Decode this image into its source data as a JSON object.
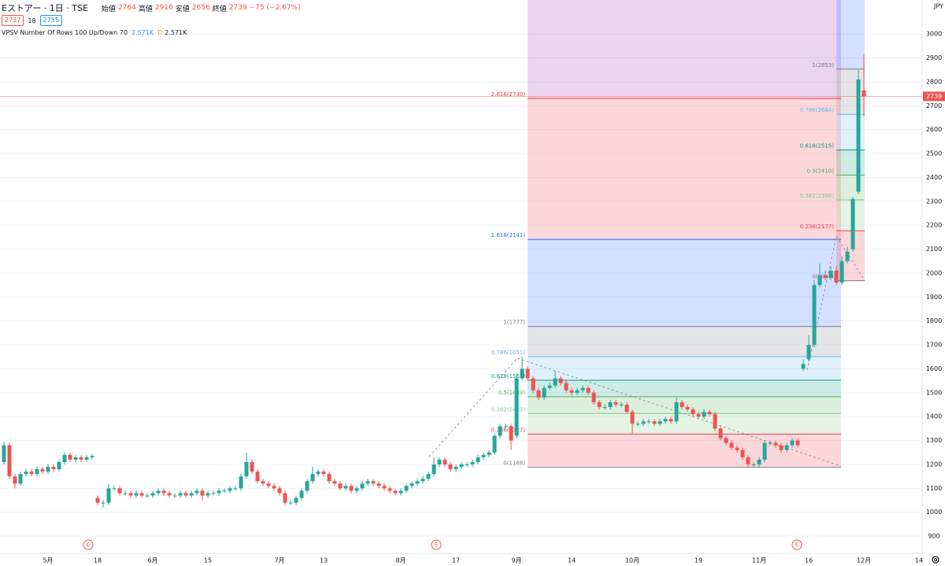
{
  "header": {
    "bid": "2737",
    "spread": "18",
    "ask": "2755",
    "indicator": "VPSV Number Of Rows 100 Up/Down 70",
    "indicator_up": "2.571K",
    "indicator_flag": "D",
    "indicator_down": "2.571K"
  },
  "chart_data": {
    "type": "candlestick",
    "title": "Eストアー · 1日 · TSE",
    "ohlc_legend": [
      {
        "label": "始値",
        "value": 2764
      },
      {
        "label": "高値",
        "value": 2916
      },
      {
        "label": "安値",
        "value": 2656
      },
      {
        "label": "終値",
        "value": 2739
      }
    ],
    "change": "−75 (−2.67%)",
    "y_unit": "JPY",
    "up_color": "#26a69a",
    "down_color": "#ef5350",
    "ylim": [
      828,
      3142
    ],
    "yticks": [
      900,
      1000,
      1100,
      1200,
      1300,
      1400,
      1500,
      1600,
      1700,
      1800,
      1900,
      2000,
      2100,
      2200,
      2300,
      2400,
      2500,
      2600,
      2700,
      2800,
      2900,
      3000
    ],
    "grid": true,
    "categories": [
      null,
      null,
      null,
      null,
      null,
      null,
      null,
      null,
      "5月",
      null,
      null,
      null,
      null,
      null,
      null,
      null,
      null,
      "18",
      null,
      null,
      null,
      null,
      null,
      null,
      null,
      null,
      null,
      "6月",
      null,
      null,
      null,
      null,
      null,
      null,
      null,
      null,
      null,
      "15",
      null,
      null,
      null,
      null,
      null,
      null,
      null,
      null,
      null,
      null,
      null,
      null,
      "7月",
      null,
      null,
      null,
      null,
      null,
      null,
      null,
      "13",
      null,
      null,
      null,
      null,
      null,
      null,
      null,
      null,
      null,
      null,
      null,
      null,
      null,
      "8月",
      null,
      null,
      null,
      null,
      null,
      null,
      null,
      null,
      null,
      "17",
      null,
      null,
      null,
      null,
      null,
      null,
      null,
      null,
      null,
      null,
      "9月",
      null,
      null,
      null,
      null,
      null,
      null,
      null,
      null,
      null,
      "14",
      null,
      null,
      null,
      null,
      null,
      null,
      null,
      null,
      null,
      null,
      "10月",
      null,
      null,
      null,
      null,
      null,
      null,
      null,
      null,
      null,
      null,
      null,
      "19",
      null,
      null,
      null,
      null,
      null,
      null,
      null,
      null,
      null,
      null,
      "11月",
      null,
      null,
      null,
      null,
      null,
      null,
      null,
      null,
      "16",
      null,
      null,
      null,
      null,
      null,
      null,
      null,
      null,
      null,
      "12月",
      null,
      null,
      null,
      null,
      null,
      null,
      null,
      null,
      null,
      "14"
    ],
    "open": [
      1210,
      1280,
      1150,
      1120,
      1160,
      1170,
      1160,
      1180,
      1170,
      1190,
      1180,
      1210,
      1240,
      1220,
      1230,
      1220,
      1230,
      1060,
      1040,
      1040,
      1100,
      1100,
      1080,
      1080,
      1070,
      1080,
      1070,
      1070,
      1080,
      1090,
      1080,
      1070,
      1070,
      1080,
      1070,
      1080,
      1090,
      1070,
      1080,
      1080,
      1090,
      1090,
      1100,
      1100,
      1150,
      1210,
      1170,
      1130,
      1120,
      1110,
      1100,
      1080,
      1040,
      1040,
      1060,
      1090,
      1130,
      1160,
      1170,
      1160,
      1130,
      1120,
      1100,
      1110,
      1090,
      1100,
      1120,
      1130,
      1120,
      1110,
      1100,
      1090,
      1080,
      1090,
      1110,
      1120,
      1130,
      1140,
      1160,
      1200,
      1220,
      1200,
      1180,
      1190,
      1200,
      1200,
      1210,
      1230,
      1240,
      1250,
      1320,
      1360,
      1360,
      1320,
      1560,
      1600,
      1560,
      1510,
      1480,
      1520,
      1530,
      1560,
      1540,
      1510,
      1500,
      1510,
      1520,
      1500,
      1460,
      1440,
      1440,
      1460,
      1450,
      1450,
      1420,
      1370,
      1370,
      1380,
      1380,
      1370,
      1380,
      1390,
      1380,
      1460,
      1440,
      1430,
      1410,
      1400,
      1420,
      1410,
      1350,
      1310,
      1290,
      1270,
      1260,
      1230,
      1200,
      1200,
      1220,
      1290,
      1290,
      1280,
      1260,
      1280,
      1300,
      1600,
      1640,
      1700,
      1950,
      1990,
      1980,
      2010,
      1960,
      2050,
      2100,
      2340,
      2764,
      null,
      null,
      null,
      null,
      null,
      null,
      null,
      null,
      null,
      null
    ],
    "high": [
      1295,
      1290,
      1160,
      1170,
      1180,
      1180,
      1190,
      1190,
      1200,
      1200,
      1220,
      1250,
      1250,
      1240,
      1240,
      1240,
      1245,
      1070,
      1050,
      1120,
      1110,
      1110,
      1090,
      1090,
      1090,
      1090,
      1080,
      1090,
      1100,
      1100,
      1090,
      1080,
      1090,
      1090,
      1090,
      1100,
      1100,
      1090,
      1090,
      1100,
      1100,
      1110,
      1110,
      1160,
      1250,
      1220,
      1180,
      1140,
      1130,
      1120,
      1110,
      1090,
      1050,
      1070,
      1100,
      1140,
      1190,
      1180,
      1180,
      1170,
      1140,
      1130,
      1120,
      1120,
      1110,
      1130,
      1140,
      1140,
      1130,
      1120,
      1110,
      1100,
      1100,
      1120,
      1130,
      1140,
      1150,
      1170,
      1230,
      1230,
      1230,
      1210,
      1200,
      1210,
      1210,
      1220,
      1240,
      1250,
      1260,
      1330,
      1370,
      1370,
      1370,
      1580,
      1651,
      1610,
      1570,
      1520,
      1530,
      1540,
      1590,
      1570,
      1550,
      1520,
      1520,
      1530,
      1530,
      1510,
      1470,
      1450,
      1470,
      1470,
      1460,
      1460,
      1430,
      1380,
      1390,
      1390,
      1390,
      1390,
      1400,
      1400,
      1480,
      1470,
      1450,
      1440,
      1420,
      1430,
      1430,
      1420,
      1360,
      1320,
      1300,
      1280,
      1270,
      1240,
      1210,
      1230,
      1300,
      1300,
      1300,
      1290,
      1290,
      1310,
      1310,
      1640,
      1740,
      1970,
      2040,
      2010,
      2030,
      2030,
      2070,
      2110,
      2320,
      2850,
      2916,
      null,
      null,
      null,
      null,
      null,
      null,
      null,
      null,
      null,
      null
    ],
    "low": [
      1200,
      1140,
      1100,
      1110,
      1150,
      1150,
      1150,
      1160,
      1160,
      1170,
      1170,
      1200,
      1210,
      1210,
      1210,
      1210,
      1220,
      1030,
      1020,
      1030,
      1090,
      1070,
      1070,
      1060,
      1060,
      1060,
      1060,
      1060,
      1070,
      1070,
      1060,
      1060,
      1060,
      1060,
      1060,
      1070,
      1050,
      1060,
      1070,
      1070,
      1080,
      1080,
      1090,
      1090,
      1140,
      1160,
      1120,
      1110,
      1100,
      1090,
      1070,
      1030,
      1030,
      1030,
      1050,
      1080,
      1120,
      1150,
      1150,
      1120,
      1110,
      1090,
      1090,
      1080,
      1080,
      1090,
      1110,
      1110,
      1100,
      1090,
      1080,
      1070,
      1070,
      1080,
      1100,
      1110,
      1120,
      1130,
      1150,
      1190,
      1190,
      1170,
      1170,
      1180,
      1190,
      1190,
      1200,
      1220,
      1230,
      1240,
      1310,
      1350,
      1260,
      1310,
      1550,
      1550,
      1500,
      1470,
      1470,
      1510,
      1520,
      1530,
      1500,
      1490,
      1490,
      1500,
      1490,
      1450,
      1430,
      1430,
      1430,
      1440,
      1440,
      1410,
      1330,
      1360,
      1360,
      1370,
      1360,
      1360,
      1370,
      1370,
      1370,
      1430,
      1420,
      1400,
      1390,
      1390,
      1400,
      1340,
      1300,
      1280,
      1260,
      1250,
      1220,
      1188,
      1190,
      1190,
      1210,
      1280,
      1270,
      1250,
      1250,
      1270,
      1270,
      1590,
      1630,
      1690,
      1940,
      1970,
      1970,
      1950,
      1950,
      2040,
      2090,
      2330,
      2656,
      null,
      null,
      null,
      null,
      null,
      null,
      null,
      null,
      null,
      null
    ],
    "close": [
      1280,
      1150,
      1120,
      1160,
      1170,
      1160,
      1180,
      1170,
      1190,
      1180,
      1210,
      1240,
      1220,
      1230,
      1220,
      1230,
      1235,
      1040,
      1040,
      1100,
      1100,
      1080,
      1080,
      1070,
      1080,
      1070,
      1070,
      1080,
      1090,
      1080,
      1070,
      1070,
      1080,
      1070,
      1080,
      1090,
      1070,
      1080,
      1080,
      1090,
      1090,
      1100,
      1100,
      1150,
      1210,
      1170,
      1130,
      1120,
      1110,
      1100,
      1080,
      1040,
      1040,
      1060,
      1090,
      1130,
      1160,
      1170,
      1160,
      1130,
      1120,
      1100,
      1110,
      1090,
      1100,
      1120,
      1130,
      1120,
      1110,
      1100,
      1090,
      1080,
      1090,
      1110,
      1120,
      1130,
      1140,
      1160,
      1200,
      1220,
      1200,
      1180,
      1190,
      1200,
      1200,
      1210,
      1230,
      1240,
      1250,
      1320,
      1360,
      1360,
      1300,
      1560,
      1600,
      1560,
      1510,
      1480,
      1520,
      1530,
      1560,
      1540,
      1510,
      1500,
      1510,
      1520,
      1500,
      1460,
      1440,
      1440,
      1460,
      1450,
      1450,
      1420,
      1370,
      1370,
      1380,
      1380,
      1370,
      1380,
      1390,
      1380,
      1460,
      1440,
      1430,
      1410,
      1400,
      1420,
      1410,
      1350,
      1310,
      1290,
      1270,
      1260,
      1230,
      1200,
      1200,
      1220,
      1290,
      1290,
      1280,
      1260,
      1280,
      1300,
      1280,
      1620,
      1700,
      1950,
      1990,
      1980,
      2010,
      1960,
      2050,
      2090,
      2310,
      2810,
      2739,
      null,
      null,
      null,
      null,
      null,
      null,
      null,
      null,
      null,
      null
    ],
    "fib_extension": {
      "top_color": "#9c27b0",
      "levels": [
        {
          "label": "0(1188)",
          "value": 1188,
          "color": "#787b86"
        },
        {
          "label": "0.236(1327)",
          "value": 1327,
          "color": "#f23645"
        },
        {
          "label": "0.382(1413)",
          "value": 1413,
          "color": "#81c784"
        },
        {
          "label": "0.5(1483)",
          "value": 1483,
          "color": "#4caf50"
        },
        {
          "label": "0.618(1552)",
          "value": 1552,
          "color": "#089981"
        },
        {
          "label": "0.786(1651)",
          "value": 1651,
          "color": "#64b5f6"
        },
        {
          "label": "1(1777)",
          "value": 1777,
          "color": "#787b86"
        },
        {
          "label": "1.618(2141)",
          "value": 2141,
          "color": "#2962ff"
        },
        {
          "label": "2.618(2730)",
          "value": 2730,
          "color": "#f23645"
        }
      ]
    },
    "fib_retracement": {
      "top_color": "#2962ff",
      "levels": [
        {
          "label": "0(1968)",
          "value": 1968,
          "color": "#787b86"
        },
        {
          "label": "0.236(2177)",
          "value": 2177,
          "color": "#f23645"
        },
        {
          "label": "0.382(2306)",
          "value": 2306,
          "color": "#81c784"
        },
        {
          "label": "0.5(2410)",
          "value": 2410,
          "color": "#4caf50"
        },
        {
          "label": "0.618(2515)",
          "value": 2515,
          "color": "#089981"
        },
        {
          "label": "0.786(2664)",
          "value": 2664,
          "color": "#64b5f6"
        },
        {
          "label": "1(2853)",
          "value": 2853,
          "color": "#787b86"
        }
      ]
    },
    "events": [
      "E",
      "E",
      "E"
    ]
  }
}
